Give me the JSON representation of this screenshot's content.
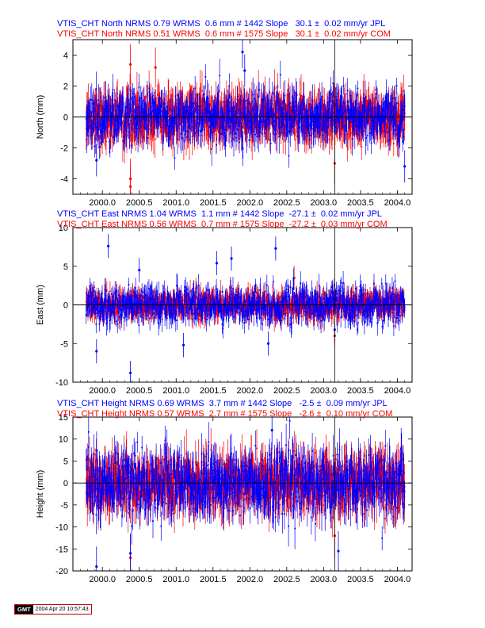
{
  "colors": {
    "jpl": "#0000ff",
    "com": "#ff0000",
    "axis": "#000000",
    "background": "#ffffff"
  },
  "chart_data": [
    {
      "type": "scatter",
      "title": "VTIS_CHT North NRMS 0.79 WRMS  0.6 mm # 1442 Slope   30.1 ±  0.02 mm/yr JPL",
      "subtitle": "VTIS_CHT North NRMS 0.51 WRMS  0.6 mm # 1575 Slope   30.1 ±  0.02 mm/yr COM",
      "xlabel": "",
      "ylabel": "North (mm)",
      "xlim": [
        1999.6,
        2004.2
      ],
      "ylim": [
        -5,
        5
      ],
      "xticks": [
        "2000.0",
        "2000.5",
        "2001.0",
        "2001.5",
        "2002.0",
        "2002.5",
        "2003.0",
        "2003.5",
        "2004.0"
      ],
      "yticks": [
        "-4",
        "-2",
        "0",
        "2",
        "4"
      ],
      "grid": false,
      "event_epoch": 2003.15,
      "series": [
        {
          "name": "JPL",
          "color": "#0000ff",
          "points": 1442,
          "scatter_sigma_mm": 0.8,
          "error_bar_mm": 0.8,
          "outliers": [
            [
              2001.9,
              4.2
            ],
            [
              2001.93,
              3.0
            ],
            [
              1999.92,
              -2.8
            ],
            [
              2004.1,
              -3.2
            ]
          ]
        },
        {
          "name": "COM",
          "color": "#ff0000",
          "points": 1575,
          "scatter_sigma_mm": 0.7,
          "error_bar_mm": 1.0,
          "outliers": [
            [
              2000.38,
              -4.5
            ],
            [
              2000.38,
              -4.0
            ],
            [
              2000.38,
              3.4
            ],
            [
              2003.15,
              -3.0
            ],
            [
              2000.72,
              3.2
            ]
          ]
        }
      ]
    },
    {
      "type": "scatter",
      "title": "VTIS_CHT East NRMS 1.04 WRMS  1.1 mm # 1442 Slope  -27.1 ±  0.02 mm/yr JPL",
      "subtitle": "VTIS_CHT East NRMS 0.56 WRMS  0.7 mm # 1575 Slope  -27.2 ±  0.03 mm/yr COM",
      "xlabel": "",
      "ylabel": "East (mm)",
      "xlim": [
        1999.6,
        2004.2
      ],
      "ylim": [
        -10,
        10
      ],
      "xticks": [
        "2000.0",
        "2000.5",
        "2001.0",
        "2001.5",
        "2002.0",
        "2002.5",
        "2003.0",
        "2003.5",
        "2004.0"
      ],
      "yticks": [
        "-10",
        "-5",
        "0",
        "5",
        "10"
      ],
      "grid": false,
      "event_epoch": 2003.15,
      "series": [
        {
          "name": "JPL",
          "color": "#0000ff",
          "points": 1442,
          "scatter_sigma_mm": 1.1,
          "error_bar_mm": 1.2,
          "outliers": [
            [
              2000.08,
              7.6
            ],
            [
              2002.35,
              7.3
            ],
            [
              1999.92,
              -6.0
            ],
            [
              2000.38,
              -8.8
            ],
            [
              2001.1,
              -5.2
            ],
            [
              2001.55,
              5.4
            ],
            [
              2001.75,
              6.0
            ],
            [
              2003.15,
              -3.2
            ],
            [
              2002.25,
              -5.0
            ],
            [
              2000.5,
              4.5
            ]
          ]
        },
        {
          "name": "COM",
          "color": "#ff0000",
          "points": 1575,
          "scatter_sigma_mm": 0.7,
          "error_bar_mm": 1.2,
          "outliers": [
            [
              2003.15,
              -4.0
            ],
            [
              2002.6,
              3.5
            ]
          ]
        }
      ]
    },
    {
      "type": "scatter",
      "title": "VTIS_CHT Height NRMS 0.69 WRMS  3.7 mm # 1442 Slope   -2.5 ±  0.09 mm/yr JPL",
      "subtitle": "VTIS_CHT Height NRMS 0.57 WRMS  2.7 mm # 1575 Slope   -2.6 ±  0.10 mm/yr COM",
      "xlabel": "",
      "ylabel": "Height (mm)",
      "xlim": [
        1999.6,
        2004.2
      ],
      "ylim": [
        -20,
        15
      ],
      "xticks": [
        "2000.0",
        "2000.5",
        "2001.0",
        "2001.5",
        "2002.0",
        "2002.5",
        "2003.0",
        "2003.5",
        "2004.0"
      ],
      "yticks": [
        "-20",
        "-15",
        "-10",
        "-5",
        "0",
        "5",
        "10",
        "15"
      ],
      "grid": false,
      "event_epoch": 2003.15,
      "series": [
        {
          "name": "JPL",
          "color": "#0000ff",
          "points": 1442,
          "scatter_sigma_mm": 3.7,
          "error_bar_mm": 3.5,
          "outliers": [
            [
              1999.92,
              -19.0
            ],
            [
              2003.2,
              -15.5
            ],
            [
              2000.38,
              -16.0
            ],
            [
              2002.3,
              12.0
            ]
          ]
        },
        {
          "name": "COM",
          "color": "#ff0000",
          "points": 1575,
          "scatter_sigma_mm": 2.7,
          "error_bar_mm": 4.0,
          "outliers": [
            [
              2000.38,
              -17.0
            ],
            [
              2003.15,
              -12.0
            ]
          ]
        }
      ]
    }
  ],
  "footer": {
    "logo": "GMT",
    "timestamp": "2004 Apr 20 10:57:43"
  }
}
